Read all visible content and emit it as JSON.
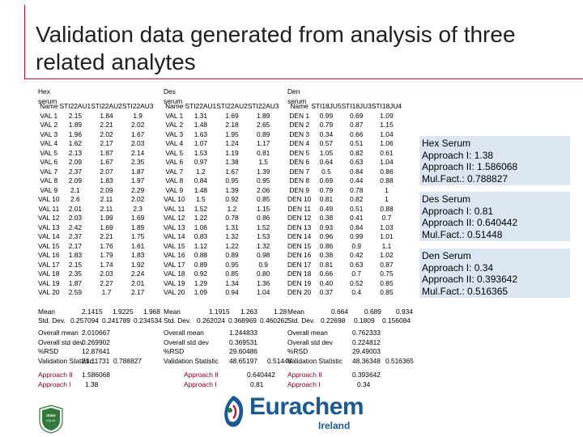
{
  "title": "Validation data generated from analysis of three related analytes",
  "groups": [
    {
      "label": "Hex serum",
      "headers": [
        "Name",
        "STI22AU1",
        "STI22AU2",
        "STI22AU3"
      ],
      "rows": [
        [
          "VAL 1",
          "2.15",
          "1.84",
          "1.9"
        ],
        [
          "VAL 2",
          "1.89",
          "2.21",
          "2.02"
        ],
        [
          "VAL 3",
          "1.96",
          "2.02",
          "1.67"
        ],
        [
          "VAL 4",
          "1.62",
          "2.17",
          "2.03"
        ],
        [
          "VAL 5",
          "2.13",
          "1.87",
          "2.14"
        ],
        [
          "VAL 6",
          "2.09",
          "1.67",
          "2.35"
        ],
        [
          "VAL 7",
          "2.37",
          "2.07",
          "1.87"
        ],
        [
          "VAL 8",
          "2.09",
          "1.83",
          "1.97"
        ],
        [
          "VAL 9",
          "2.1",
          "2.09",
          "2.29"
        ],
        [
          "VAL 10",
          "2.6",
          "2.11",
          "2.02"
        ],
        [
          "VAL 11",
          "2.01",
          "2.11",
          "2.3"
        ],
        [
          "VAL 12",
          "2.03",
          "1.99",
          "1.69"
        ],
        [
          "VAL 13",
          "2.42",
          "1.69",
          "1.89"
        ],
        [
          "VAL 14",
          "2.37",
          "2.21",
          "1.75"
        ],
        [
          "VAL 15",
          "2.17",
          "1.76",
          "1.61"
        ],
        [
          "VAL 16",
          "1.83",
          "1.79",
          "1.83"
        ],
        [
          "VAL 17",
          "2.15",
          "1.74",
          "1.92"
        ],
        [
          "VAL 18",
          "2.35",
          "2.03",
          "2.24"
        ],
        [
          "VAL 19",
          "1.87",
          "2.27",
          "2.01"
        ],
        [
          "VAL 20",
          "2.59",
          "1.7",
          "2.17"
        ]
      ],
      "mean": [
        "2.1415",
        "1.9225",
        "1.968"
      ],
      "sd": [
        "0.257094",
        "0.241789",
        "0.234534"
      ]
    },
    {
      "label": "Des serum",
      "headers": [
        "Name",
        "STI22AU1",
        "STI22AU2",
        "STI22AU3"
      ],
      "rows": [
        [
          "VAL 1",
          "1.31",
          "1.69",
          "1.89"
        ],
        [
          "VAL 2",
          "1.48",
          "2.18",
          "2.65"
        ],
        [
          "VAL 3",
          "1.63",
          "1.95",
          "0.89"
        ],
        [
          "VAL 4",
          "1.07",
          "1.24",
          "1.17"
        ],
        [
          "VAL 5",
          "1.53",
          "1.19",
          "0.81"
        ],
        [
          "VAL 6",
          "0.97",
          "1.38",
          "1.5"
        ],
        [
          "VAL 7",
          "1.2",
          "1.67",
          "1.39"
        ],
        [
          "VAL 8",
          "0.84",
          "0.95",
          "0.95"
        ],
        [
          "VAL 9",
          "1.48",
          "1.39",
          "2.06"
        ],
        [
          "VAL 10",
          "1.5",
          "0.92",
          "0.85"
        ],
        [
          "VAL 11",
          "1.52",
          "1.2",
          "1.15"
        ],
        [
          "VAL 12",
          "1.22",
          "0.78",
          "0.86"
        ],
        [
          "VAL 13",
          "1.06",
          "1.31",
          "1.52"
        ],
        [
          "VAL 14",
          "0.83",
          "1.32",
          "1.53"
        ],
        [
          "VAL 15",
          "1.12",
          "1.22",
          "1.32"
        ],
        [
          "VAL 16",
          "0.88",
          "0.89",
          "0.98"
        ],
        [
          "VAL 17",
          "0.89",
          "0.95",
          "0.9"
        ],
        [
          "VAL 18",
          "0.92",
          "0.85",
          "0.80"
        ],
        [
          "VAL 19",
          "1.29",
          "1.34",
          "1.36"
        ],
        [
          "VAL 20",
          "1.09",
          "0.94",
          "1.04"
        ]
      ],
      "mean": [
        "1.1915",
        "1.263",
        "1.28"
      ],
      "sd": [
        "0.262024",
        "0.368969",
        "0.460262"
      ]
    },
    {
      "label": "Den serum",
      "headers": [
        "Name",
        "STI18JU5",
        "STI18JU3",
        "STI18JU4"
      ],
      "rows": [
        [
          "DEN 1",
          "0.99",
          "0.69",
          "1.09"
        ],
        [
          "DEN 2",
          "0.79",
          "0.87",
          "1.15"
        ],
        [
          "DEN 3",
          "0.34",
          "0.66",
          "1.04"
        ],
        [
          "DEN 4",
          "0.57",
          "0.51",
          "1.06"
        ],
        [
          "DEN 5",
          "1.05",
          "0.82",
          "0.61"
        ],
        [
          "DEN 6",
          "0.64",
          "0.63",
          "1.04"
        ],
        [
          "DEN 7",
          "0.5",
          "0.84",
          "0.86"
        ],
        [
          "DEN 8",
          "0.69",
          "0.44",
          "0.88"
        ],
        [
          "DEN 9",
          "0.79",
          "0.78",
          "1"
        ],
        [
          "DEN 10",
          "0.81",
          "0.82",
          "1"
        ],
        [
          "DEN 11",
          "0.49",
          "0.51",
          "0.88"
        ],
        [
          "DEN 12",
          "0.38",
          "0.41",
          "0.7"
        ],
        [
          "DEN 13",
          "0.93",
          "0.84",
          "1.03"
        ],
        [
          "DEN 14",
          "0.96",
          "0.99",
          "1.01"
        ],
        [
          "DEN 15",
          "0.86",
          "0.9",
          "1.1"
        ],
        [
          "DEN 16",
          "0.38",
          "0.42",
          "1.02"
        ],
        [
          "DEN 17",
          "0.81",
          "0.63",
          "0.87"
        ],
        [
          "DEN 18",
          "0.66",
          "0.7",
          "0.75"
        ],
        [
          "DEN 19",
          "0.40",
          "0.52",
          "0.85"
        ],
        [
          "DEN 20",
          "0.37",
          "0.4",
          "0.85"
        ]
      ],
      "mean": [
        "0.664",
        "0.689",
        "0.934"
      ],
      "sd": [
        "0.22698",
        "0.1809",
        "0.156084"
      ]
    }
  ],
  "stat_labels": {
    "mean": "Mean",
    "sd": "Std. Dev."
  },
  "summary_labels": [
    "Overall mean",
    "Overall std dev",
    "%RSD",
    "Validation Statistic"
  ],
  "summary_values": [
    {
      "overall_mean": "2.010667",
      "overall_sd": "0.269902",
      "rsd": "12.87641",
      "vs1": "21.11731",
      "vs2": "0.788827"
    },
    {
      "overall_mean": "1.244833",
      "overall_sd": "0.369531",
      "rsd": "29.60486",
      "vs1": "48.65197",
      "vs2": "0.51448"
    },
    {
      "overall_mean": "0.762333",
      "overall_sd": "0.224812",
      "rsd": "29.49003",
      "vs1": "48.36348",
      "vs2": "0.516365"
    }
  ],
  "approach_labels": [
    "Approach II",
    "Approach I"
  ],
  "approach_values": [
    {
      "a2": "1.586068",
      "a1": "1.38"
    },
    {
      "a2": "0.640442",
      "a1": "0.81"
    },
    {
      "a2": "0.393642",
      "a1": "0.34"
    }
  ],
  "boxes": [
    {
      "title": "Hex Serum",
      "a1": "Approach I: 1.38",
      "a2": "Approach II: 1.586068",
      "mf": "Mul.Fact.: 0.788827"
    },
    {
      "title": "Des Serum",
      "a1": "Approach I: 0.81",
      "a2": "Approach II: 0.640442",
      "mf": "Mul.Fact.: 0.51448"
    },
    {
      "title": "Den Serum",
      "a1": "Approach I: 0.34",
      "a2": "Approach II: 0.393642",
      "mf": "Mul.Fact.: 0.516365"
    }
  ],
  "logo": {
    "name": "Eurachem",
    "region": "Ireland",
    "badge_text": "IRISH EQUIVALENCY",
    "brand_color": "#1a5a96",
    "accent_color": "#c8102e"
  }
}
